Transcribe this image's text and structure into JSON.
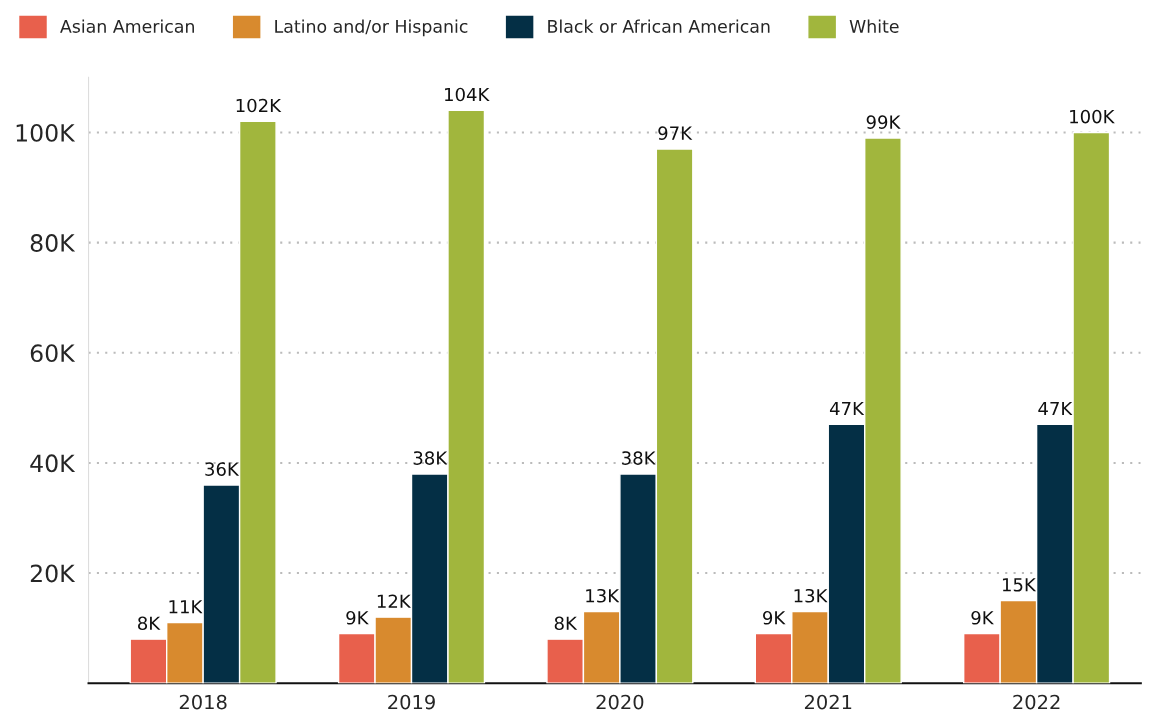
{
  "chart_data": {
    "type": "bar",
    "categories": [
      "2018",
      "2019",
      "2020",
      "2021",
      "2022"
    ],
    "series": [
      {
        "name": "Asian American",
        "color": "#e8604c",
        "values": [
          8000,
          9000,
          8000,
          9000,
          9000
        ],
        "value_labels": [
          "8K",
          "9K",
          "8K",
          "9K",
          "9K"
        ]
      },
      {
        "name": "Latino and/or Hispanic",
        "color": "#d88a2e",
        "values": [
          11000,
          12000,
          13000,
          13000,
          15000
        ],
        "value_labels": [
          "11K",
          "12K",
          "13K",
          "13K",
          "15K"
        ]
      },
      {
        "name": "Black or African American",
        "color": "#042f45",
        "values": [
          36000,
          38000,
          38000,
          47000,
          47000
        ],
        "value_labels": [
          "36K",
          "38K",
          "38K",
          "47K",
          "47K"
        ]
      },
      {
        "name": "White",
        "color": "#a1b63d",
        "values": [
          102000,
          104000,
          97000,
          99000,
          100000
        ],
        "value_labels": [
          "102K",
          "104K",
          "97K",
          "99K",
          "100K"
        ]
      }
    ],
    "yticks": [
      {
        "value": 20000,
        "label": "20K"
      },
      {
        "value": 40000,
        "label": "40K"
      },
      {
        "value": 60000,
        "label": "60K"
      },
      {
        "value": 80000,
        "label": "80K"
      },
      {
        "value": 100000,
        "label": "100K"
      }
    ],
    "ylim": [
      0,
      110000
    ],
    "grid": "y",
    "legend": "top left"
  }
}
